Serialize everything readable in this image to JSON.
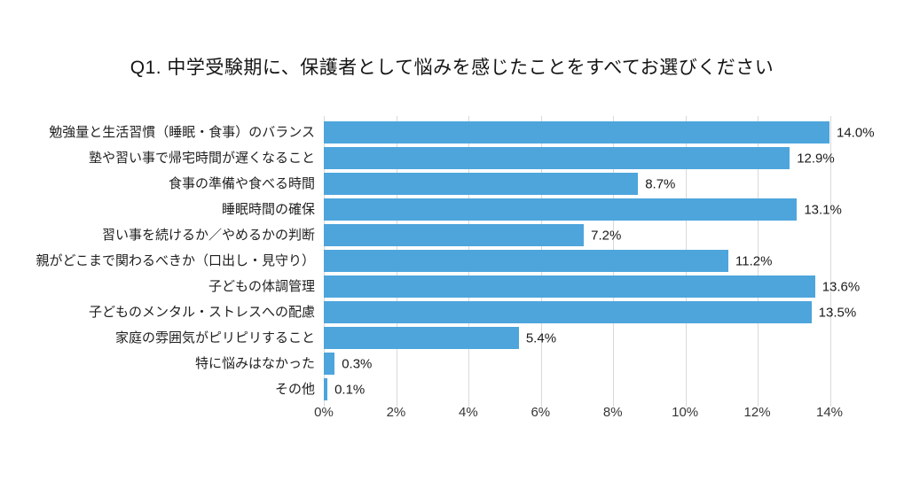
{
  "chart_data": {
    "type": "bar",
    "orientation": "horizontal",
    "title": "Q1. 中学受験期に、保護者として悩みを感じたことをすべてお選びください",
    "categories": [
      "勉強量と生活習慣（睡眠・食事）のバランス",
      "塾や習い事で帰宅時間が遅くなること",
      "食事の準備や食べる時間",
      "睡眠時間の確保",
      "習い事を続けるか／やめるかの判断",
      "親がどこまで関わるべきか（口出し・見守り）",
      "子どもの体調管理",
      "子どものメンタル・ストレスへの配慮",
      "家庭の雰囲気がピリピリすること",
      "特に悩みはなかった",
      "その他"
    ],
    "values": [
      14.0,
      12.9,
      8.7,
      13.1,
      7.2,
      11.2,
      13.6,
      13.5,
      5.4,
      0.3,
      0.1
    ],
    "value_labels": [
      "14.0%",
      "12.9%",
      "8.7%",
      "13.1%",
      "7.2%",
      "11.2%",
      "13.6%",
      "13.5%",
      "5.4%",
      "0.3%",
      "0.1%"
    ],
    "xlabel": "",
    "ylabel": "",
    "xlim": [
      0,
      14
    ],
    "x_ticks": [
      {
        "value": 0,
        "label": "0%"
      },
      {
        "value": 2,
        "label": "2%"
      },
      {
        "value": 4,
        "label": "4%"
      },
      {
        "value": 6,
        "label": "6%"
      },
      {
        "value": 8,
        "label": "8%"
      },
      {
        "value": 10,
        "label": "10%"
      },
      {
        "value": 12,
        "label": "12%"
      },
      {
        "value": 14,
        "label": "14%"
      }
    ],
    "grid": true,
    "legend": "none",
    "colors": {
      "bar": "#4DA5DC",
      "gridline": "#D9D9D9",
      "text": "#1F1F1F",
      "background": "#FFFFFF"
    }
  }
}
